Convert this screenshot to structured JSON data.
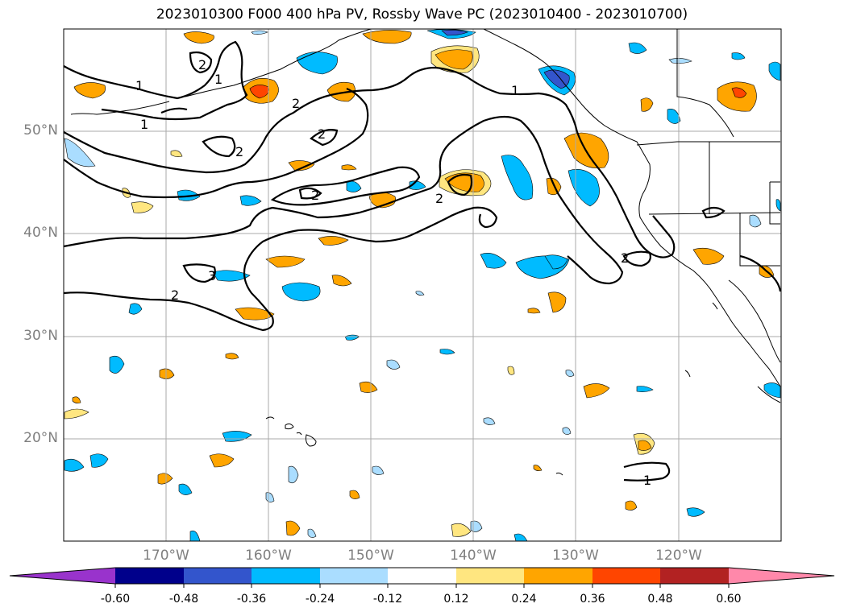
{
  "title": "2023010300 F000 400 hPa PV, Rossby Wave PC (2023010400 - 2023010700)",
  "map": {
    "lat_labels": [
      "50°N",
      "40°N",
      "30°N",
      "20°N"
    ],
    "lon_labels": [
      "170°W",
      "160°W",
      "150°W",
      "140°W",
      "130°W",
      "120°W"
    ],
    "lat_range": [
      10,
      60
    ],
    "lon_range": [
      -180,
      -110
    ],
    "gridlines": true,
    "contour_labels": [
      "1",
      "1",
      "1",
      "2",
      "2",
      "2",
      "2",
      "2",
      "2",
      "3",
      "1",
      "2",
      "2",
      "1"
    ]
  },
  "colorbar": {
    "ticks": [
      "-0.60",
      "-0.48",
      "-0.36",
      "-0.24",
      "-0.12",
      "0.12",
      "0.24",
      "0.36",
      "0.48",
      "0.60"
    ],
    "colors": [
      "#9933cc",
      "#00008b",
      "#3355cc",
      "#00bbff",
      "#aaddff",
      "#ffffff",
      "#ffe680",
      "#ffa500",
      "#ff4500",
      "#b22222",
      "#ff88aa"
    ],
    "extend": "both"
  }
}
